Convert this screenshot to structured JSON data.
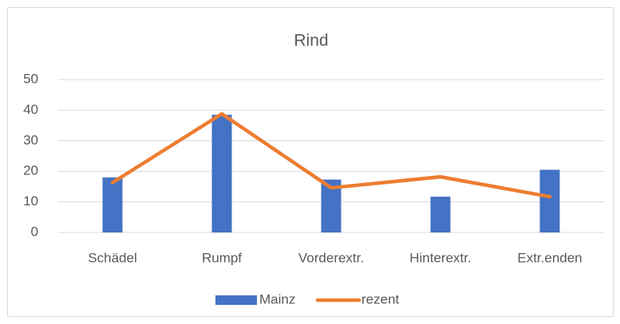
{
  "chart_data": {
    "type": "combo",
    "title": "Rind",
    "categories": [
      "Schädel",
      "Rumpf",
      "Vorderextr.",
      "Hinterextr.",
      "Extr.enden"
    ],
    "series": [
      {
        "name": "Mainz",
        "type": "bar",
        "color": "#4472c4",
        "values": [
          18,
          38.5,
          17.3,
          11.7,
          20.5
        ]
      },
      {
        "name": "rezent",
        "type": "line",
        "color": "#ed7d31",
        "values": [
          16.3,
          38.8,
          14.6,
          18.2,
          11.7
        ]
      }
    ],
    "ylim": [
      0,
      50
    ],
    "yticks": [
      0,
      10,
      20,
      30,
      40,
      50
    ],
    "grid": true,
    "legend": "bottom"
  }
}
